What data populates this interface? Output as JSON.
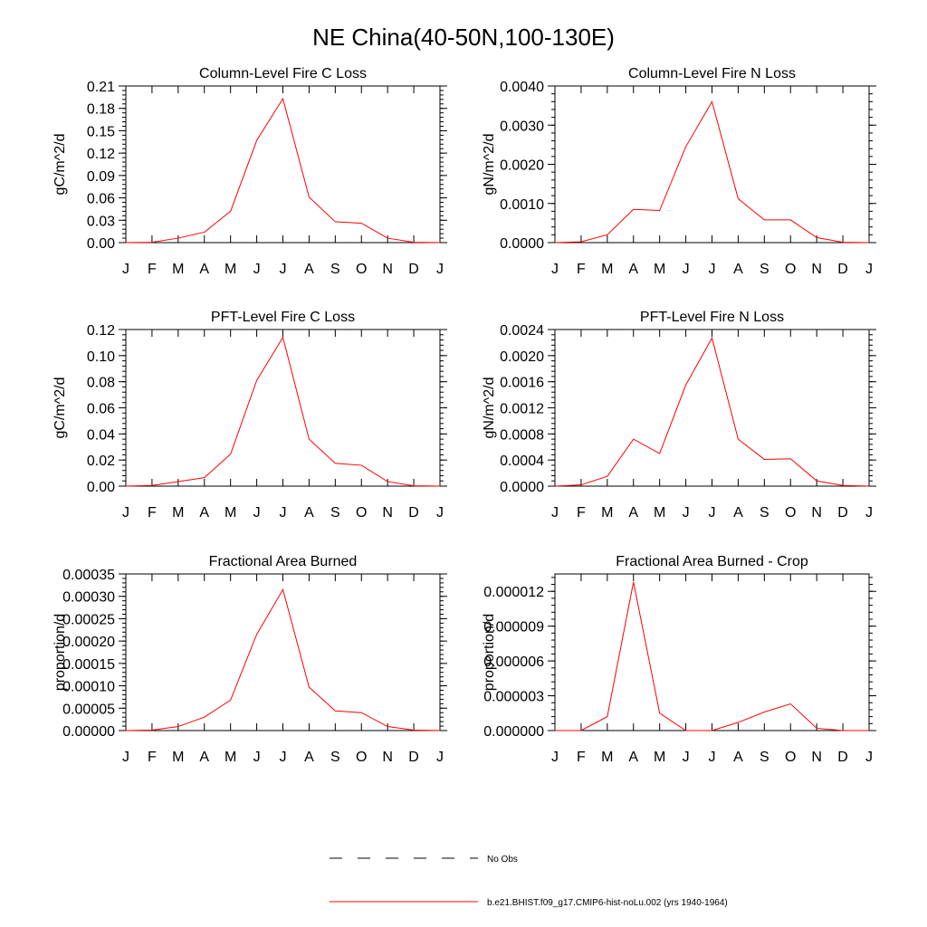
{
  "figure_title": "NE China(40-50N,100-130E)",
  "legend": {
    "obs_label": "No Obs",
    "model_label": "b.e21.BHIST.f09_g17.CMIP6-hist-noLu.002 (yrs 1940-1964)",
    "model_color": "#ff0000",
    "obs_color": "#000000"
  },
  "chart_data": [
    {
      "type": "line",
      "title": "Column-Level Fire C Loss",
      "ylabel": "gC/m^2/d",
      "categories": [
        "J",
        "F",
        "M",
        "A",
        "M",
        "J",
        "J",
        "A",
        "S",
        "O",
        "N",
        "D",
        "J"
      ],
      "ylim": [
        0,
        0.21
      ],
      "yticks": [
        "0.00",
        "0.03",
        "0.06",
        "0.09",
        "0.12",
        "0.15",
        "0.18",
        "0.21"
      ],
      "series": [
        {
          "values": [
            0.0,
            0.0005,
            0.006,
            0.014,
            0.042,
            0.137,
            0.193,
            0.061,
            0.028,
            0.026,
            0.006,
            0.0005,
            0.0
          ]
        }
      ]
    },
    {
      "type": "line",
      "title": "Column-Level Fire N Loss",
      "ylabel": "gN/m^2/d",
      "categories": [
        "J",
        "F",
        "M",
        "A",
        "M",
        "J",
        "J",
        "A",
        "S",
        "O",
        "N",
        "D",
        "J"
      ],
      "ylim": [
        0,
        0.004
      ],
      "yticks": [
        "0.0000",
        "0.0010",
        "0.0020",
        "0.0030",
        "0.0040"
      ],
      "series": [
        {
          "values": [
            0.0,
            2e-05,
            0.0002,
            0.00085,
            0.00082,
            0.00245,
            0.0036,
            0.00112,
            0.00058,
            0.00058,
            0.00013,
            1e-05,
            0.0
          ]
        }
      ]
    },
    {
      "type": "line",
      "title": "PFT-Level Fire C Loss",
      "ylabel": "gC/m^2/d",
      "categories": [
        "J",
        "F",
        "M",
        "A",
        "M",
        "J",
        "J",
        "A",
        "S",
        "O",
        "N",
        "D",
        "J"
      ],
      "ylim": [
        0,
        0.12
      ],
      "yticks": [
        "0.00",
        "0.02",
        "0.04",
        "0.06",
        "0.08",
        "0.10",
        "0.12"
      ],
      "series": [
        {
          "values": [
            0.0,
            0.0005,
            0.0035,
            0.0065,
            0.0245,
            0.081,
            0.114,
            0.036,
            0.0175,
            0.016,
            0.0035,
            0.0003,
            0.0
          ]
        }
      ]
    },
    {
      "type": "line",
      "title": "PFT-Level Fire N Loss",
      "ylabel": "gN/m^2/d",
      "categories": [
        "J",
        "F",
        "M",
        "A",
        "M",
        "J",
        "J",
        "A",
        "S",
        "O",
        "N",
        "D",
        "J"
      ],
      "ylim": [
        0,
        0.0024
      ],
      "yticks": [
        "0.0000",
        "0.0004",
        "0.0008",
        "0.0012",
        "0.0016",
        "0.0020",
        "0.0024"
      ],
      "series": [
        {
          "values": [
            0.0,
            2e-05,
            0.00015,
            0.00072,
            0.0005,
            0.00155,
            0.00227,
            0.00072,
            0.00041,
            0.00042,
            8e-05,
            1e-05,
            0.0
          ]
        }
      ]
    },
    {
      "type": "line",
      "title": "Fractional Area Burned",
      "ylabel": "proportion/d",
      "categories": [
        "J",
        "F",
        "M",
        "A",
        "M",
        "J",
        "J",
        "A",
        "S",
        "O",
        "N",
        "D",
        "J"
      ],
      "ylim": [
        0,
        0.00035
      ],
      "yticks": [
        "0.00000",
        "0.00005",
        "0.00010",
        "0.00015",
        "0.00020",
        "0.00025",
        "0.00030",
        "0.00035"
      ],
      "series": [
        {
          "values": [
            0.0,
            1e-06,
            9e-06,
            3e-05,
            6.8e-05,
            0.000215,
            0.000315,
            9.7e-05,
            4.4e-05,
            4e-05,
            9e-06,
            1e-06,
            0.0
          ]
        }
      ]
    },
    {
      "type": "line",
      "title": "Fractional Area Burned - Crop",
      "ylabel": "proportion/d",
      "categories": [
        "J",
        "F",
        "M",
        "A",
        "M",
        "J",
        "J",
        "A",
        "S",
        "O",
        "N",
        "D",
        "J"
      ],
      "ylim": [
        0,
        1.35e-05
      ],
      "yticks": [
        "0.000000",
        "0.000003",
        "0.000006",
        "0.000009",
        "0.000012"
      ],
      "series": [
        {
          "values": [
            0.0,
            0.0,
            1.2e-06,
            1.28e-05,
            1.5e-06,
            0.0,
            0.0,
            7e-07,
            1.6e-06,
            2.3e-06,
            2e-07,
            0.0,
            0.0
          ]
        }
      ]
    }
  ]
}
